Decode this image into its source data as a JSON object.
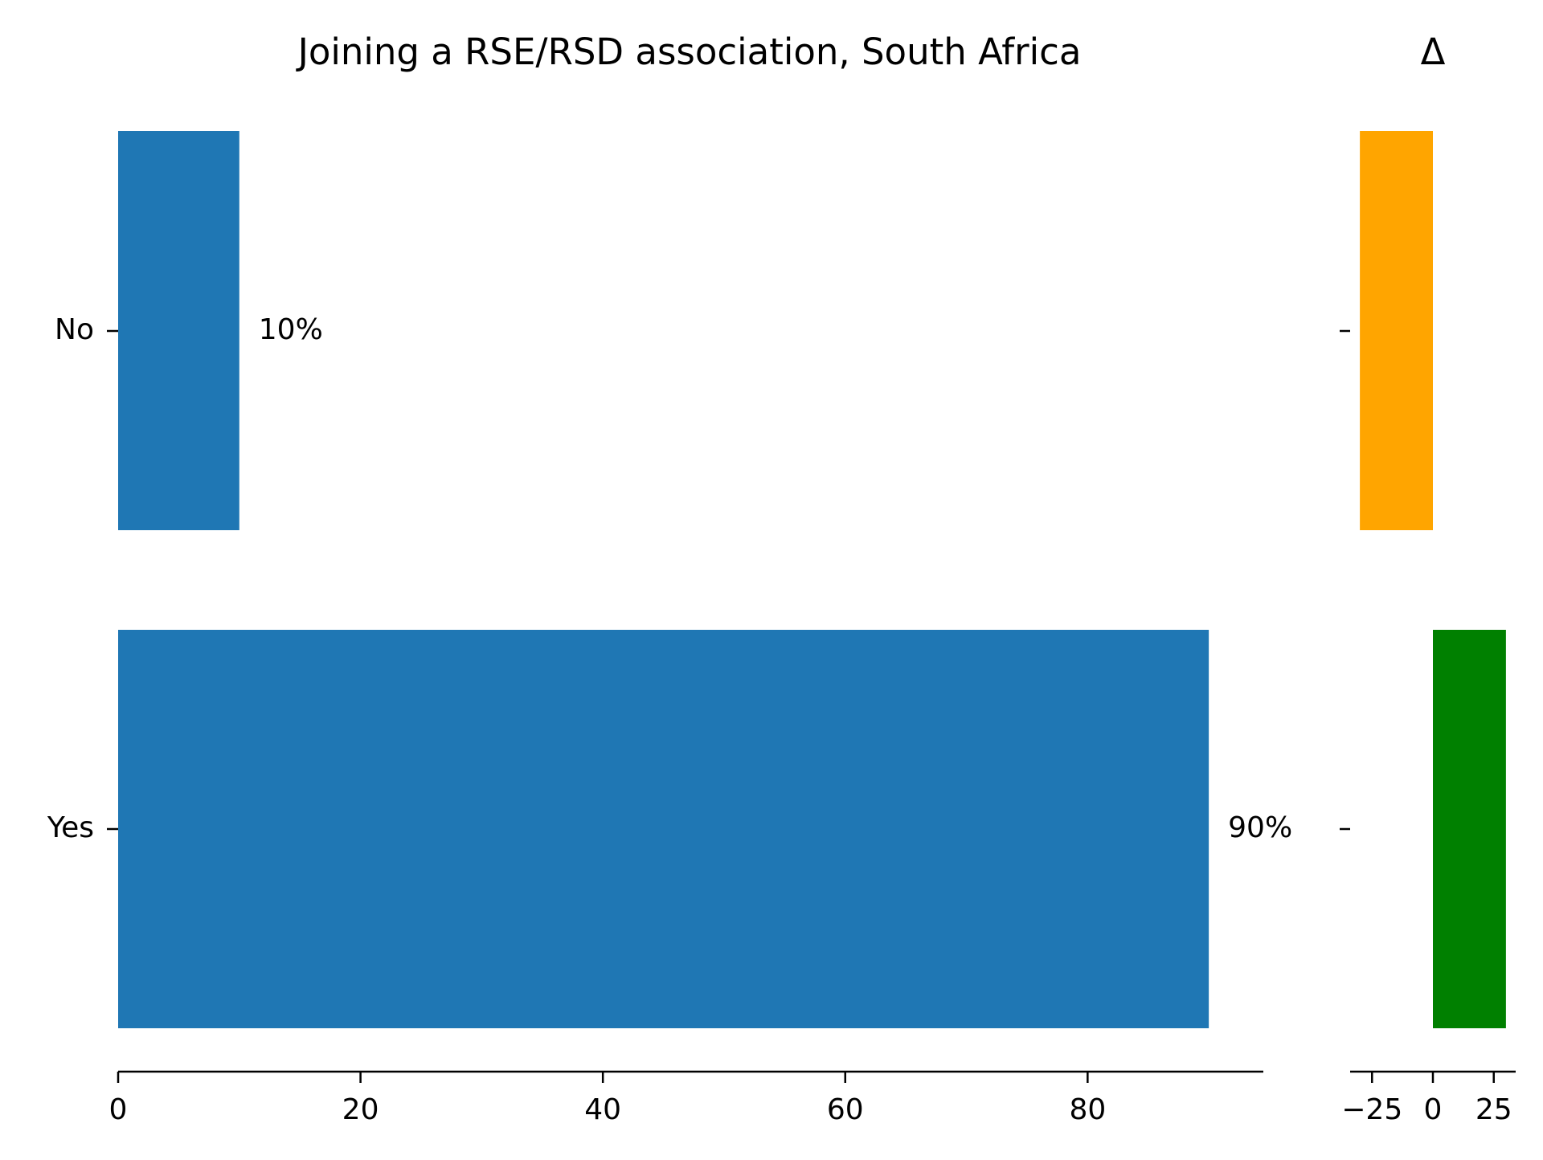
{
  "chart_data": [
    {
      "type": "bar",
      "orientation": "horizontal",
      "title": "Joining a RSE/RSD association, South Africa",
      "categories": [
        "No",
        "Yes"
      ],
      "values": [
        10,
        90
      ],
      "value_labels": [
        "10%",
        "90%"
      ],
      "xlim": [
        0,
        94.5
      ],
      "xticks": [
        0,
        20,
        40,
        60,
        80
      ],
      "xtick_labels": [
        "0",
        "20",
        "40",
        "60",
        "80"
      ],
      "color": "#1f77b4",
      "grid": false
    },
    {
      "type": "bar",
      "orientation": "horizontal",
      "title": "Δ",
      "categories": [
        "No",
        "Yes"
      ],
      "values": [
        -30,
        30
      ],
      "xlim": [
        -34,
        34
      ],
      "xticks": [
        -25,
        0,
        25
      ],
      "xtick_labels": [
        "−25",
        "0",
        "25"
      ],
      "colors": [
        "#ffa500",
        "#008000"
      ],
      "grid": false
    }
  ]
}
